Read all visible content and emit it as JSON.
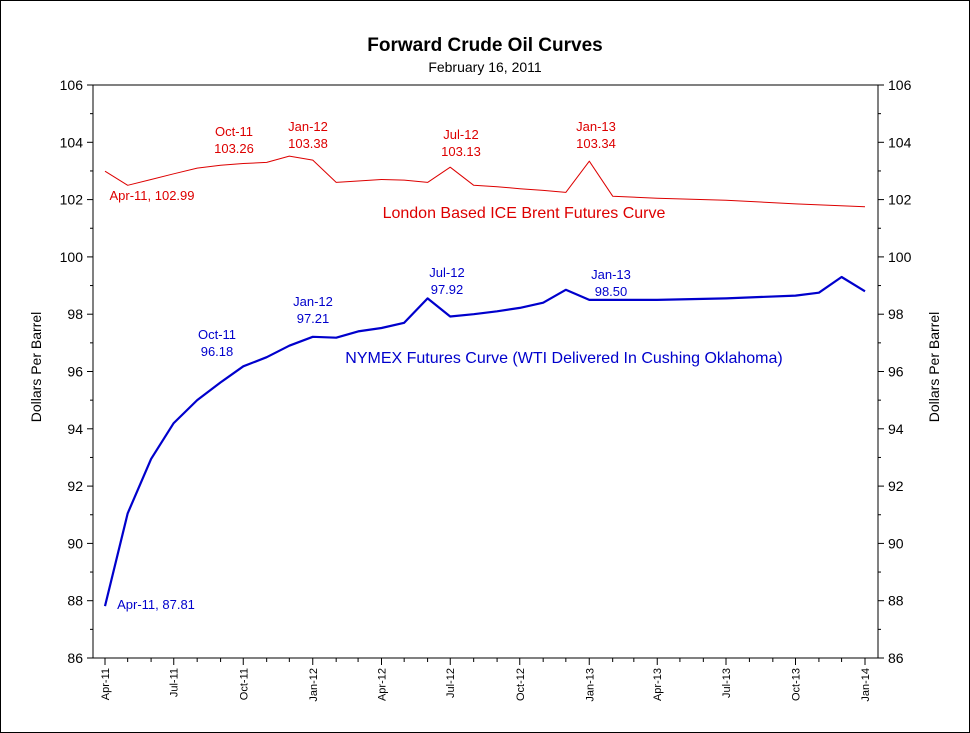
{
  "chart_data": {
    "type": "line",
    "title": "Forward Crude Oil Curves",
    "subtitle": "February 16, 2011",
    "ylabel_left": "Dollars Per Barrel",
    "ylabel_right": "Dollars Per Barrel",
    "ylim": [
      86,
      106
    ],
    "yticks": [
      "86",
      "88",
      "90",
      "92",
      "94",
      "96",
      "98",
      "100",
      "102",
      "104",
      "106"
    ],
    "xlim": [
      "2011-04-01",
      "2014-01-01"
    ],
    "xticks": [
      {
        "label": "Apr-11",
        "date": "2011-04-01"
      },
      {
        "label": "Jul-11",
        "date": "2011-07-01"
      },
      {
        "label": "Oct-11",
        "date": "2011-10-01"
      },
      {
        "label": "Jan-12",
        "date": "2012-01-01"
      },
      {
        "label": "Apr-12",
        "date": "2012-04-01"
      },
      {
        "label": "Jul-12",
        "date": "2012-07-01"
      },
      {
        "label": "Oct-12",
        "date": "2012-10-01"
      },
      {
        "label": "Jan-13",
        "date": "2013-01-01"
      },
      {
        "label": "Apr-13",
        "date": "2013-04-01"
      },
      {
        "label": "Jul-13",
        "date": "2013-07-01"
      },
      {
        "label": "Oct-13",
        "date": "2013-10-01"
      },
      {
        "label": "Jan-14",
        "date": "2014-01-01"
      }
    ],
    "grid": false,
    "series": [
      {
        "name": "London Based ICE Brent Futures Curve",
        "color": "#dd0000",
        "points": [
          {
            "x": "2011-04-01",
            "y": 102.99
          },
          {
            "x": "2011-05-01",
            "y": 102.5
          },
          {
            "x": "2011-06-01",
            "y": 102.7
          },
          {
            "x": "2011-07-01",
            "y": 102.9
          },
          {
            "x": "2011-08-01",
            "y": 103.1
          },
          {
            "x": "2011-09-01",
            "y": 103.2
          },
          {
            "x": "2011-10-01",
            "y": 103.26
          },
          {
            "x": "2011-11-01",
            "y": 103.3
          },
          {
            "x": "2011-12-01",
            "y": 103.52
          },
          {
            "x": "2012-01-01",
            "y": 103.38
          },
          {
            "x": "2012-02-01",
            "y": 102.6
          },
          {
            "x": "2012-03-01",
            "y": 102.65
          },
          {
            "x": "2012-04-01",
            "y": 102.7
          },
          {
            "x": "2012-05-01",
            "y": 102.68
          },
          {
            "x": "2012-06-01",
            "y": 102.6
          },
          {
            "x": "2012-07-01",
            "y": 103.13
          },
          {
            "x": "2012-08-01",
            "y": 102.5
          },
          {
            "x": "2012-09-01",
            "y": 102.45
          },
          {
            "x": "2012-10-01",
            "y": 102.38
          },
          {
            "x": "2012-11-01",
            "y": 102.32
          },
          {
            "x": "2012-12-01",
            "y": 102.25
          },
          {
            "x": "2013-01-01",
            "y": 103.34
          },
          {
            "x": "2013-02-01",
            "y": 102.12
          },
          {
            "x": "2013-04-01",
            "y": 102.05
          },
          {
            "x": "2013-07-01",
            "y": 101.98
          },
          {
            "x": "2013-10-01",
            "y": 101.85
          },
          {
            "x": "2014-01-01",
            "y": 101.75
          }
        ],
        "annotations": [
          {
            "label": "Apr-11, 102.99",
            "x": "2011-04-01"
          },
          {
            "label": "Oct-11",
            "value": "103.26",
            "x": "2011-10-01"
          },
          {
            "label": "Jan-12",
            "value": "103.38",
            "x": "2012-01-01"
          },
          {
            "label": "Jul-12",
            "value": "103.13",
            "x": "2012-07-01"
          },
          {
            "label": "Jan-13",
            "value": "103.34",
            "x": "2013-01-01"
          }
        ]
      },
      {
        "name": "NYMEX Futures Curve (WTI Delivered In Cushing Oklahoma)",
        "color": "#0000cc",
        "points": [
          {
            "x": "2011-04-01",
            "y": 87.81
          },
          {
            "x": "2011-05-01",
            "y": 91.05
          },
          {
            "x": "2011-06-01",
            "y": 92.95
          },
          {
            "x": "2011-07-01",
            "y": 94.2
          },
          {
            "x": "2011-08-01",
            "y": 95.0
          },
          {
            "x": "2011-09-01",
            "y": 95.62
          },
          {
            "x": "2011-10-01",
            "y": 96.18
          },
          {
            "x": "2011-11-01",
            "y": 96.5
          },
          {
            "x": "2011-12-01",
            "y": 96.9
          },
          {
            "x": "2012-01-01",
            "y": 97.21
          },
          {
            "x": "2012-02-01",
            "y": 97.18
          },
          {
            "x": "2012-03-01",
            "y": 97.4
          },
          {
            "x": "2012-04-01",
            "y": 97.52
          },
          {
            "x": "2012-05-01",
            "y": 97.7
          },
          {
            "x": "2012-06-01",
            "y": 98.55
          },
          {
            "x": "2012-07-01",
            "y": 97.92
          },
          {
            "x": "2012-08-01",
            "y": 98.0
          },
          {
            "x": "2012-09-01",
            "y": 98.1
          },
          {
            "x": "2012-10-01",
            "y": 98.22
          },
          {
            "x": "2012-11-01",
            "y": 98.4
          },
          {
            "x": "2012-12-01",
            "y": 98.85
          },
          {
            "x": "2013-01-01",
            "y": 98.5
          },
          {
            "x": "2013-04-01",
            "y": 98.5
          },
          {
            "x": "2013-07-01",
            "y": 98.55
          },
          {
            "x": "2013-10-01",
            "y": 98.65
          },
          {
            "x": "2013-11-01",
            "y": 98.75
          },
          {
            "x": "2013-12-01",
            "y": 99.3
          },
          {
            "x": "2014-01-01",
            "y": 98.8
          }
        ],
        "annotations": [
          {
            "label": "Apr-11, 87.81",
            "x": "2011-04-01"
          },
          {
            "label": "Oct-11",
            "value": "96.18",
            "x": "2011-10-01"
          },
          {
            "label": "Jan-12",
            "value": "97.21",
            "x": "2012-01-01"
          },
          {
            "label": "Jul-12",
            "value": "97.92",
            "x": "2012-07-01"
          },
          {
            "label": "Jan-13",
            "value": "98.50",
            "x": "2013-01-01"
          }
        ]
      }
    ]
  }
}
